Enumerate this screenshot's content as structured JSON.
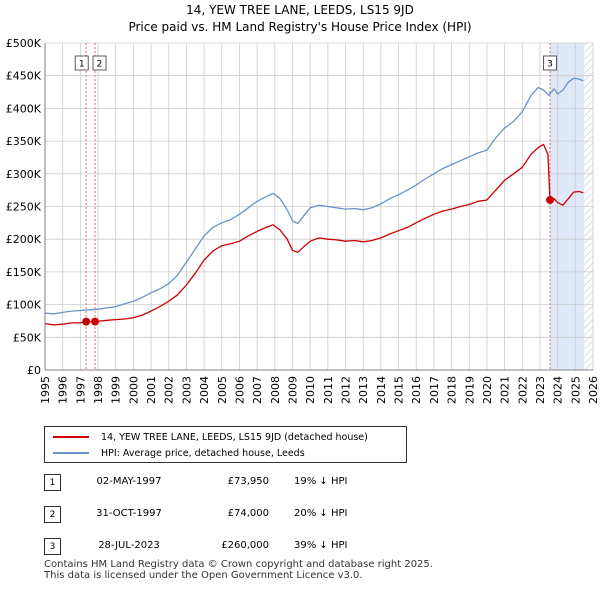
{
  "title": "14, YEW TREE LANE, LEEDS, LS15 9JD",
  "subtitle": "Price paid vs. HM Land Registry's House Price Index (HPI)",
  "colors": {
    "property": "#cc0000",
    "hpi": "#6a93c8",
    "marker_line": "#ee6677",
    "shade": "#dfe8f6",
    "grid": "#cccccc"
  },
  "chart_data": {
    "type": "line",
    "title": "Price paid vs. HM Land Registry's House Price Index (HPI)",
    "xlabel": "",
    "ylabel": "",
    "xlim": [
      1995,
      2026
    ],
    "ylim": [
      0,
      500000
    ],
    "grid": true,
    "legend_position": "below",
    "y_ticks": [
      {
        "value": 0,
        "label": "£0"
      },
      {
        "value": 50000,
        "label": "£50K"
      },
      {
        "value": 100000,
        "label": "£100K"
      },
      {
        "value": 150000,
        "label": "£150K"
      },
      {
        "value": 200000,
        "label": "£200K"
      },
      {
        "value": 250000,
        "label": "£250K"
      },
      {
        "value": 300000,
        "label": "£300K"
      },
      {
        "value": 350000,
        "label": "£350K"
      },
      {
        "value": 400000,
        "label": "£400K"
      },
      {
        "value": 450000,
        "label": "£450K"
      },
      {
        "value": 500000,
        "label": "£500K"
      }
    ],
    "x_ticks": [
      "1995",
      "1996",
      "1997",
      "1998",
      "1999",
      "2000",
      "2001",
      "2002",
      "2003",
      "2004",
      "2005",
      "2006",
      "2007",
      "2008",
      "2009",
      "2010",
      "2011",
      "2012",
      "2013",
      "2014",
      "2015",
      "2016",
      "2017",
      "2018",
      "2019",
      "2020",
      "2021",
      "2022",
      "2023",
      "2024",
      "2025",
      "2026"
    ],
    "shaded_region": {
      "from": 2023.57,
      "to": 2025.5
    },
    "hatched_region": {
      "from": 2025.5,
      "to": 2026
    },
    "series": [
      {
        "name": "14, YEW TREE LANE, LEEDS, LS15 9JD (detached house)",
        "color": "#cc0000",
        "points": [
          [
            1995.0,
            71000
          ],
          [
            1995.5,
            69000
          ],
          [
            1996.0,
            70000
          ],
          [
            1996.5,
            72000
          ],
          [
            1997.0,
            72000
          ],
          [
            1997.33,
            73950
          ],
          [
            1997.6,
            74000
          ],
          [
            1997.83,
            74000
          ],
          [
            1998.5,
            76000
          ],
          [
            1999.0,
            77000
          ],
          [
            1999.5,
            78000
          ],
          [
            2000.0,
            80000
          ],
          [
            2000.5,
            84000
          ],
          [
            2001.0,
            90000
          ],
          [
            2001.5,
            97000
          ],
          [
            2002.0,
            105000
          ],
          [
            2002.5,
            115000
          ],
          [
            2003.0,
            130000
          ],
          [
            2003.5,
            148000
          ],
          [
            2004.0,
            168000
          ],
          [
            2004.5,
            182000
          ],
          [
            2005.0,
            190000
          ],
          [
            2005.5,
            193000
          ],
          [
            2006.0,
            197000
          ],
          [
            2006.5,
            205000
          ],
          [
            2007.0,
            212000
          ],
          [
            2007.5,
            218000
          ],
          [
            2007.9,
            222000
          ],
          [
            2008.3,
            214000
          ],
          [
            2008.7,
            200000
          ],
          [
            2009.0,
            183000
          ],
          [
            2009.3,
            180000
          ],
          [
            2009.7,
            190000
          ],
          [
            2010.0,
            197000
          ],
          [
            2010.5,
            202000
          ],
          [
            2011.0,
            200000
          ],
          [
            2011.5,
            199000
          ],
          [
            2012.0,
            197000
          ],
          [
            2012.5,
            198000
          ],
          [
            2013.0,
            196000
          ],
          [
            2013.5,
            198000
          ],
          [
            2014.0,
            202000
          ],
          [
            2014.5,
            208000
          ],
          [
            2015.0,
            213000
          ],
          [
            2015.5,
            218000
          ],
          [
            2016.0,
            225000
          ],
          [
            2016.5,
            232000
          ],
          [
            2017.0,
            238000
          ],
          [
            2017.5,
            243000
          ],
          [
            2018.0,
            246000
          ],
          [
            2018.5,
            250000
          ],
          [
            2019.0,
            253000
          ],
          [
            2019.5,
            258000
          ],
          [
            2020.0,
            260000
          ],
          [
            2020.5,
            275000
          ],
          [
            2021.0,
            290000
          ],
          [
            2021.5,
            300000
          ],
          [
            2022.0,
            310000
          ],
          [
            2022.5,
            330000
          ],
          [
            2022.9,
            340000
          ],
          [
            2023.2,
            345000
          ],
          [
            2023.45,
            330000
          ],
          [
            2023.57,
            260000
          ],
          [
            2023.8,
            262000
          ],
          [
            2024.0,
            256000
          ],
          [
            2024.3,
            252000
          ],
          [
            2024.6,
            262000
          ],
          [
            2024.9,
            272000
          ],
          [
            2025.2,
            273000
          ],
          [
            2025.45,
            271000
          ]
        ]
      },
      {
        "name": "HPI: Average price, detached house, Leeds",
        "color": "#6a93c8",
        "points": [
          [
            1995.0,
            87000
          ],
          [
            1995.5,
            86000
          ],
          [
            1996.0,
            88000
          ],
          [
            1996.5,
            90000
          ],
          [
            1997.0,
            91000
          ],
          [
            1997.5,
            92000
          ],
          [
            1998.0,
            93000
          ],
          [
            1998.5,
            95000
          ],
          [
            1999.0,
            97000
          ],
          [
            1999.5,
            101000
          ],
          [
            2000.0,
            105000
          ],
          [
            2000.5,
            111000
          ],
          [
            2001.0,
            118000
          ],
          [
            2001.5,
            124000
          ],
          [
            2002.0,
            132000
          ],
          [
            2002.5,
            145000
          ],
          [
            2003.0,
            165000
          ],
          [
            2003.5,
            185000
          ],
          [
            2004.0,
            205000
          ],
          [
            2004.5,
            218000
          ],
          [
            2005.0,
            225000
          ],
          [
            2005.5,
            230000
          ],
          [
            2006.0,
            238000
          ],
          [
            2006.5,
            248000
          ],
          [
            2007.0,
            258000
          ],
          [
            2007.5,
            265000
          ],
          [
            2007.9,
            270000
          ],
          [
            2008.3,
            262000
          ],
          [
            2008.7,
            245000
          ],
          [
            2009.0,
            228000
          ],
          [
            2009.3,
            224000
          ],
          [
            2009.7,
            238000
          ],
          [
            2010.0,
            248000
          ],
          [
            2010.5,
            252000
          ],
          [
            2011.0,
            250000
          ],
          [
            2011.5,
            248000
          ],
          [
            2012.0,
            246000
          ],
          [
            2012.5,
            247000
          ],
          [
            2013.0,
            245000
          ],
          [
            2013.5,
            248000
          ],
          [
            2014.0,
            254000
          ],
          [
            2014.5,
            262000
          ],
          [
            2015.0,
            268000
          ],
          [
            2015.5,
            275000
          ],
          [
            2016.0,
            283000
          ],
          [
            2016.5,
            292000
          ],
          [
            2017.0,
            300000
          ],
          [
            2017.5,
            308000
          ],
          [
            2018.0,
            314000
          ],
          [
            2018.5,
            320000
          ],
          [
            2019.0,
            326000
          ],
          [
            2019.5,
            332000
          ],
          [
            2020.0,
            336000
          ],
          [
            2020.5,
            355000
          ],
          [
            2021.0,
            370000
          ],
          [
            2021.5,
            380000
          ],
          [
            2022.0,
            395000
          ],
          [
            2022.5,
            420000
          ],
          [
            2022.9,
            432000
          ],
          [
            2023.2,
            428000
          ],
          [
            2023.5,
            420000
          ],
          [
            2023.8,
            430000
          ],
          [
            2024.0,
            422000
          ],
          [
            2024.3,
            428000
          ],
          [
            2024.6,
            440000
          ],
          [
            2024.9,
            446000
          ],
          [
            2025.2,
            445000
          ],
          [
            2025.45,
            442000
          ]
        ]
      }
    ],
    "sales": [
      {
        "label": "1",
        "date": "02-MAY-1997",
        "x": 1997.33,
        "price": 73950,
        "price_label": "£73,950",
        "hpi_diff": "19% ↓ HPI"
      },
      {
        "label": "2",
        "date": "31-OCT-1997",
        "x": 1997.83,
        "price": 74000,
        "price_label": "£74,000",
        "hpi_diff": "20% ↓ HPI"
      },
      {
        "label": "3",
        "date": "28-JUL-2023",
        "x": 2023.57,
        "price": 260000,
        "price_label": "£260,000",
        "hpi_diff": "39% ↓ HPI"
      }
    ]
  },
  "legend": {
    "property_label": "14, YEW TREE LANE, LEEDS, LS15 9JD (detached house)",
    "hpi_label": "HPI: Average price, detached house, Leeds"
  },
  "footer": {
    "line1": "Contains HM Land Registry data © Crown copyright and database right 2025.",
    "line2": "This data is licensed under the Open Government Licence v3.0."
  }
}
